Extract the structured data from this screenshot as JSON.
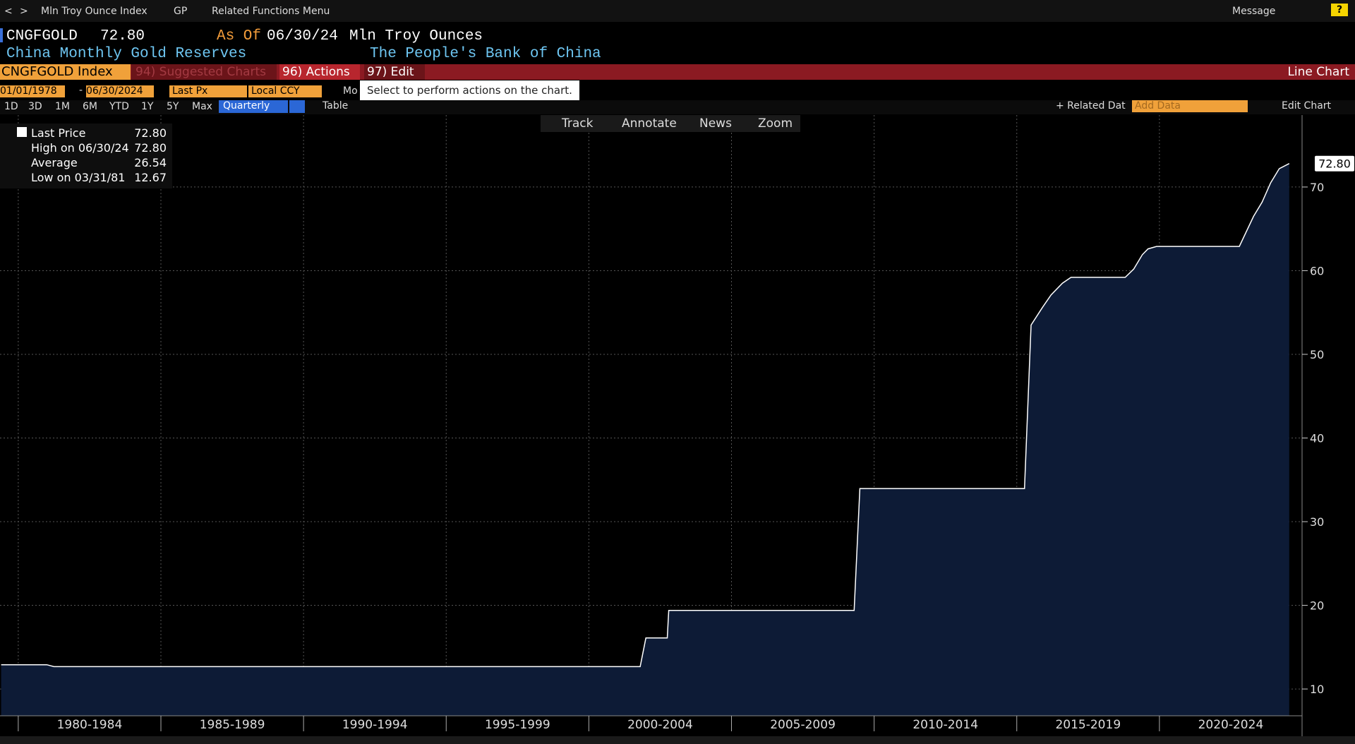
{
  "toolbar": {
    "index_menu": "Mln Troy Ounce Index",
    "gp_menu": "GP",
    "related_menu": "Related Functions Menu",
    "message": "Message",
    "help": "?"
  },
  "header": {
    "ticker": "CNGFGOLD",
    "price": "72.80",
    "as_of_label": "As Of",
    "as_of_date": "06/30/24",
    "units": "Mln Troy Ounces",
    "name": "China Monthly Gold Reserves",
    "source": "The People's Bank of China"
  },
  "command_bar": {
    "security": "CNGFGOLD Index",
    "suggested": "94) Suggested Charts",
    "actions": "96) Actions",
    "edit": "97) Edit",
    "chart_kind": "Line Chart"
  },
  "settings_row": {
    "start_date": "01/01/1978",
    "separator": "-",
    "end_date": "06/30/2024",
    "field": "Last Px",
    "currency": "Local CCY",
    "mode": "Mo",
    "tooltip": "Select to perform actions on the chart."
  },
  "range_buttons": [
    "1D",
    "3D",
    "1M",
    "6M",
    "YTD",
    "1Y",
    "5Y",
    "Max"
  ],
  "periodicity": "Quarterly",
  "table_button": "Table",
  "right_tools": {
    "related": "+ Related Dat",
    "add_data": "Add Data",
    "edit_chart": "Edit Chart"
  },
  "chart_tools": [
    "Track",
    "Annotate",
    "News",
    "Zoom"
  ],
  "chart_data": {
    "type": "area",
    "x": [
      1979.4,
      1981.0,
      1981.25,
      2001.8,
      2002.0,
      2002.75,
      2002.8,
      2009.3,
      2009.5,
      2015.27,
      2015.5,
      2015.9,
      2016.2,
      2016.6,
      2016.9,
      2018.8,
      2019.1,
      2019.4,
      2019.6,
      2019.9,
      2022.8,
      2023.3,
      2023.6,
      2023.9,
      2024.2,
      2024.55
    ],
    "values": [
      12.9,
      12.9,
      12.67,
      12.67,
      16.1,
      16.1,
      19.4,
      19.4,
      33.96,
      33.96,
      53.5,
      55.6,
      57.1,
      58.5,
      59.2,
      59.2,
      60.2,
      61.9,
      62.6,
      62.9,
      62.9,
      66.5,
      68.2,
      70.5,
      72.2,
      72.8
    ],
    "xlim": [
      1979.36,
      2025.0
    ],
    "ylim": [
      6.8,
      78.6
    ],
    "yticks": [
      10,
      20,
      30,
      40,
      50,
      60,
      70
    ],
    "xgrid": [
      1980,
      1985,
      1990,
      1995,
      2000,
      2005,
      2010,
      2015,
      2020
    ],
    "xticks": [
      {
        "value": 1982.5,
        "label": "1980-1984"
      },
      {
        "value": 1987.5,
        "label": "1985-1989"
      },
      {
        "value": 1992.5,
        "label": "1990-1994"
      },
      {
        "value": 1997.5,
        "label": "1995-1999"
      },
      {
        "value": 2002.5,
        "label": "2000-2004"
      },
      {
        "value": 2007.5,
        "label": "2005-2009"
      },
      {
        "value": 2012.5,
        "label": "2010-2014"
      },
      {
        "value": 2017.5,
        "label": "2015-2019"
      },
      {
        "value": 2022.5,
        "label": "2020-2024"
      }
    ],
    "color": "#0d1b36",
    "line_color": "#ffffff",
    "grid": true,
    "last_value_label": "72.80",
    "legend": [
      {
        "label": "Last Price",
        "value": "72.80"
      },
      {
        "label": "High on 06/30/24",
        "value": "72.80"
      },
      {
        "label": "Average",
        "value": "26.54"
      },
      {
        "label": "Low on 03/31/81",
        "value": "12.67"
      }
    ]
  }
}
